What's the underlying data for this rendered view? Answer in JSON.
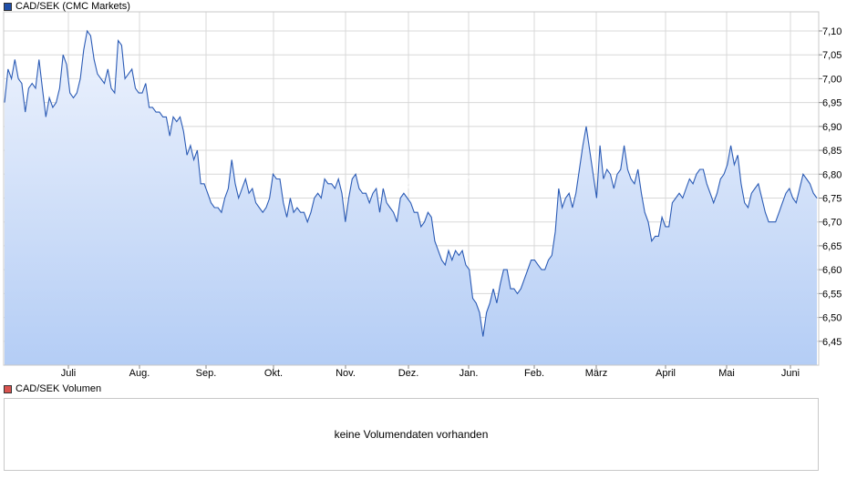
{
  "colors": {
    "price_line": "#2b5bb5",
    "price_legend": "#1f4ea8",
    "volume_legend": "#d9534f",
    "grid": "#d8d8d8",
    "fill_top": "#eef3fd",
    "fill_bottom": "#b4cdf5"
  },
  "legend": {
    "price": "CAD/SEK (CMC Markets)",
    "volume": "CAD/SEK Volumen"
  },
  "volume": {
    "message": "keine Volumendaten vorhanden"
  },
  "chart_data": {
    "type": "area",
    "ylim": [
      6.4,
      7.14
    ],
    "yticks": [
      "7,10",
      "7,05",
      "7,00",
      "6,95",
      "6,90",
      "6,85",
      "6,80",
      "6,75",
      "6,70",
      "6,65",
      "6,60",
      "6,55",
      "6,50",
      "6,45"
    ],
    "ytick_values": [
      7.1,
      7.05,
      7.0,
      6.95,
      6.9,
      6.85,
      6.8,
      6.75,
      6.7,
      6.65,
      6.6,
      6.55,
      6.5,
      6.45
    ],
    "xticks": [
      "Juli",
      "Aug.",
      "Sep.",
      "Okt.",
      "Nov.",
      "Dez.",
      "Jan.",
      "Feb.",
      "März",
      "April",
      "Mai",
      "Juni"
    ],
    "grid": true,
    "legend_position": "top-left",
    "series": [
      {
        "name": "CAD/SEK (CMC Markets)",
        "values": [
          6.95,
          7.02,
          7.0,
          7.04,
          7.0,
          6.99,
          6.93,
          6.98,
          6.99,
          6.98,
          7.04,
          6.98,
          6.92,
          6.96,
          6.94,
          6.95,
          6.98,
          7.05,
          7.03,
          6.97,
          6.96,
          6.97,
          7.0,
          7.06,
          7.1,
          7.09,
          7.04,
          7.01,
          7.0,
          6.99,
          7.02,
          6.98,
          6.97,
          7.08,
          7.07,
          7.0,
          7.01,
          7.02,
          6.98,
          6.97,
          6.97,
          6.99,
          6.94,
          6.94,
          6.93,
          6.93,
          6.92,
          6.92,
          6.88,
          6.92,
          6.91,
          6.92,
          6.89,
          6.84,
          6.86,
          6.83,
          6.85,
          6.78,
          6.78,
          6.76,
          6.74,
          6.73,
          6.73,
          6.72,
          6.75,
          6.77,
          6.83,
          6.78,
          6.75,
          6.77,
          6.79,
          6.76,
          6.77,
          6.74,
          6.73,
          6.72,
          6.73,
          6.75,
          6.8,
          6.79,
          6.79,
          6.74,
          6.71,
          6.75,
          6.72,
          6.73,
          6.72,
          6.72,
          6.7,
          6.72,
          6.75,
          6.76,
          6.75,
          6.79,
          6.78,
          6.78,
          6.77,
          6.79,
          6.76,
          6.7,
          6.75,
          6.79,
          6.8,
          6.77,
          6.76,
          6.76,
          6.74,
          6.76,
          6.77,
          6.72,
          6.77,
          6.74,
          6.73,
          6.72,
          6.7,
          6.75,
          6.76,
          6.75,
          6.74,
          6.72,
          6.72,
          6.69,
          6.7,
          6.72,
          6.71,
          6.66,
          6.64,
          6.62,
          6.61,
          6.64,
          6.62,
          6.64,
          6.63,
          6.64,
          6.61,
          6.6,
          6.54,
          6.53,
          6.51,
          6.46,
          6.51,
          6.53,
          6.56,
          6.53,
          6.57,
          6.6,
          6.6,
          6.56,
          6.56,
          6.55,
          6.56,
          6.58,
          6.6,
          6.62,
          6.62,
          6.61,
          6.6,
          6.6,
          6.62,
          6.63,
          6.68,
          6.77,
          6.73,
          6.75,
          6.76,
          6.73,
          6.76,
          6.81,
          6.86,
          6.9,
          6.85,
          6.8,
          6.75,
          6.86,
          6.79,
          6.81,
          6.8,
          6.77,
          6.8,
          6.81,
          6.86,
          6.81,
          6.79,
          6.78,
          6.81,
          6.76,
          6.72,
          6.7,
          6.66,
          6.67,
          6.67,
          6.71,
          6.69,
          6.69,
          6.74,
          6.75,
          6.76,
          6.75,
          6.77,
          6.79,
          6.78,
          6.8,
          6.81,
          6.81,
          6.78,
          6.76,
          6.74,
          6.76,
          6.79,
          6.8,
          6.82,
          6.86,
          6.82,
          6.84,
          6.78,
          6.74,
          6.73,
          6.76,
          6.77,
          6.78,
          6.75,
          6.72,
          6.7,
          6.7,
          6.7,
          6.72,
          6.74,
          6.76,
          6.77,
          6.75,
          6.74,
          6.77,
          6.8,
          6.79,
          6.78,
          6.76,
          6.75
        ]
      }
    ]
  }
}
